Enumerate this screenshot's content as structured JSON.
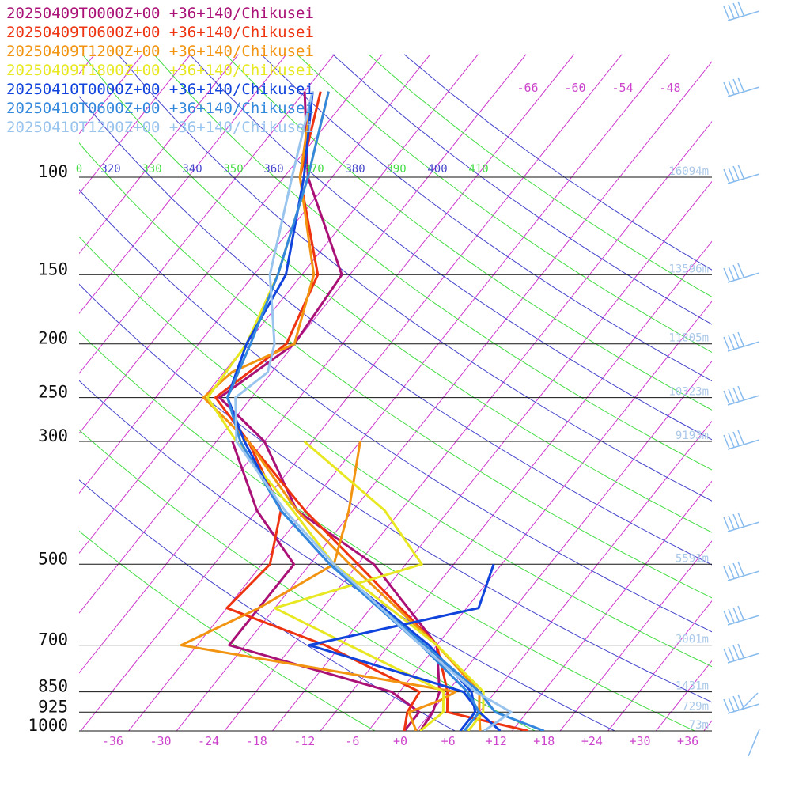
{
  "chart_data": {
    "type": "line",
    "title": "",
    "legend": [
      {
        "label": "20250409T0000Z+00 +36+140/Chikusei",
        "color": "#aa1177"
      },
      {
        "label": "20250409T0600Z+00 +36+140/Chikusei",
        "color": "#ee3311"
      },
      {
        "label": "20250409T1200Z+00 +36+140/Chikusei",
        "color": "#f29411"
      },
      {
        "label": "20250409T1800Z+00 +36+140/Chikusei",
        "color": "#e8e822"
      },
      {
        "label": "20250410T0000Z+00 +36+140/Chikusei",
        "color": "#1144dd"
      },
      {
        "label": "20250410T0600Z+00 +36+140/Chikusei",
        "color": "#3388dd"
      },
      {
        "label": "20250410T1200Z+00 +36+140/Chikusei",
        "color": "#99c4ee"
      }
    ],
    "pressure_levels": [
      {
        "label": "100",
        "p": 100,
        "height": "16094m"
      },
      {
        "label": "150",
        "p": 150,
        "height": "13596m"
      },
      {
        "label": "200",
        "p": 200,
        "height": "11805m"
      },
      {
        "label": "250",
        "p": 250,
        "height": "10323m"
      },
      {
        "label": "300",
        "p": 300,
        "height": "9193m"
      },
      {
        "label": "500",
        "p": 500,
        "height": "5591m"
      },
      {
        "label": "700",
        "p": 700,
        "height": "3001m"
      },
      {
        "label": "850",
        "p": 850,
        "height": "1431m"
      },
      {
        "label": "925",
        "p": 925,
        "height": "729m"
      },
      {
        "label": "1000",
        "p": 1000,
        "height": "73m"
      }
    ],
    "x_ticks": [
      "-36",
      "-30",
      "-24",
      "-18",
      "-12",
      "-6",
      "+0",
      "+6",
      "+12",
      "+18",
      "+24",
      "+30",
      "+36"
    ],
    "x_tick_values": [
      -36,
      -30,
      -24,
      -18,
      -12,
      -6,
      0,
      6,
      12,
      18,
      24,
      30,
      36
    ],
    "top_isotherm_labels": [
      "-66",
      "-60",
      "-54",
      "-48"
    ],
    "theta_labels": [
      {
        "label": "0",
        "color": "#44dd44"
      },
      {
        "label": "320",
        "color": "#4444cc"
      },
      {
        "label": "330",
        "color": "#44dd44"
      },
      {
        "label": "340",
        "color": "#4444cc"
      },
      {
        "label": "350",
        "color": "#44dd44"
      },
      {
        "label": "360",
        "color": "#4444cc"
      },
      {
        "label": "370",
        "color": "#44dd44"
      },
      {
        "label": "380",
        "color": "#4444cc"
      },
      {
        "label": "390",
        "color": "#44dd44"
      },
      {
        "label": "400",
        "color": "#4444cc"
      },
      {
        "label": "410",
        "color": "#44dd44"
      }
    ],
    "series": [
      {
        "name": "20250409T0000Z+00 +36+140/Chikusei",
        "color": "#aa1177",
        "profiles": [
          {
            "kind": "temperature",
            "points": [
              [
                1000,
                2.5
              ],
              [
                925,
                2.2
              ],
              [
                850,
                1.0
              ],
              [
                700,
                -4.0
              ],
              [
                500,
                -20.0
              ],
              [
                400,
                -35.0
              ],
              [
                300,
                -46.0
              ],
              [
                250,
                -56.0
              ],
              [
                200,
                -52.0
              ],
              [
                150,
                -53.0
              ],
              [
                100,
                -67.0
              ],
              [
                70,
                -76.0
              ]
            ]
          },
          {
            "kind": "dewpoint",
            "points": [
              [
                1000,
                0.5
              ],
              [
                925,
                0.5
              ],
              [
                850,
                -5.0
              ],
              [
                700,
                -30.0
              ],
              [
                500,
                -30.0
              ],
              [
                400,
                -40.0
              ],
              [
                300,
                -50.0
              ]
            ]
          }
        ]
      },
      {
        "name": "20250409T0600Z+00 +36+140/Chikusei",
        "color": "#ee3311",
        "profiles": [
          {
            "kind": "temperature",
            "points": [
              [
                1000,
                16.0
              ],
              [
                925,
                4.0
              ],
              [
                850,
                2.0
              ],
              [
                700,
                -4.0
              ],
              [
                500,
                -22.0
              ],
              [
                400,
                -34.0
              ],
              [
                300,
                -48.0
              ],
              [
                250,
                -56.5
              ],
              [
                200,
                -53.0
              ],
              [
                150,
                -56.0
              ],
              [
                100,
                -68.0
              ],
              [
                70,
                -74.0
              ]
            ]
          },
          {
            "kind": "dewpoint",
            "points": [
              [
                1000,
                0.5
              ],
              [
                925,
                -1.0
              ],
              [
                850,
                -1.5
              ],
              [
                700,
                -18.0
              ],
              [
                600,
                -34.0
              ],
              [
                500,
                -33.0
              ],
              [
                400,
                -37.0
              ],
              [
                300,
                -48.0
              ]
            ]
          }
        ]
      },
      {
        "name": "20250409T1200Z+00 +36+140/Chikusei",
        "color": "#f29411",
        "profiles": [
          {
            "kind": "temperature",
            "points": [
              [
                1000,
                10.0
              ],
              [
                925,
                8.0
              ],
              [
                850,
                6.0
              ],
              [
                700,
                -4.0
              ],
              [
                500,
                -23.0
              ],
              [
                400,
                -35.0
              ],
              [
                300,
                -48.0
              ],
              [
                250,
                -58.0
              ],
              [
                225,
                -57.0
              ],
              [
                200,
                -52.0
              ],
              [
                150,
                -56.5
              ],
              [
                100,
                -68.0
              ],
              [
                70,
                -75.0
              ]
            ]
          },
          {
            "kind": "dewpoint",
            "points": [
              [
                1000,
                2.0
              ],
              [
                925,
                -0.8
              ],
              [
                880,
                2.0
              ],
              [
                850,
                3.0
              ],
              [
                700,
                -36.0
              ],
              [
                600,
                -30.0
              ],
              [
                500,
                -25.0
              ],
              [
                400,
                -28.5
              ],
              [
                300,
                -34.0
              ]
            ]
          }
        ]
      },
      {
        "name": "20250409T1800Z+00 +36+140/Chikusei",
        "color": "#e8e822",
        "profiles": [
          {
            "kind": "temperature",
            "points": [
              [
                1000,
                8.5
              ],
              [
                925,
                8.5
              ],
              [
                850,
                6.5
              ],
              [
                700,
                -4.0
              ],
              [
                500,
                -25.0
              ],
              [
                400,
                -35.5
              ],
              [
                300,
                -49.5
              ],
              [
                250,
                -57.5
              ],
              [
                200,
                -58.0
              ],
              [
                150,
                -61.0
              ],
              [
                100,
                -67.0
              ],
              [
                70,
                -73.0
              ]
            ]
          },
          {
            "kind": "dewpoint",
            "points": [
              [
                1000,
                2.5
              ],
              [
                925,
                3.5
              ],
              [
                850,
                1.5
              ],
              [
                700,
                -15.0
              ],
              [
                600,
                -28.0
              ],
              [
                500,
                -14.0
              ],
              [
                400,
                -24.0
              ],
              [
                300,
                -41.0
              ]
            ]
          }
        ]
      },
      {
        "name": "20250410T0000Z+00 +36+140/Chikusei",
        "color": "#1144dd",
        "profiles": [
          {
            "kind": "temperature",
            "points": [
              [
                1000,
                7.5
              ],
              [
                925,
                7.5
              ],
              [
                850,
                5.0
              ],
              [
                700,
                -5.0
              ],
              [
                500,
                -25.5
              ],
              [
                400,
                -37.0
              ],
              [
                300,
                -48.5
              ],
              [
                250,
                -55.0
              ],
              [
                200,
                -58.0
              ],
              [
                150,
                -60.0
              ],
              [
                100,
                -67.5
              ],
              [
                70,
                -75.0
              ]
            ]
          },
          {
            "kind": "dewpoint",
            "points": [
              [
                1000,
                12.5
              ],
              [
                925,
                8.0
              ],
              [
                850,
                4.0
              ],
              [
                700,
                -20.0
              ],
              [
                600,
                -2.5
              ],
              [
                500,
                -5.0
              ]
            ]
          }
        ]
      },
      {
        "name": "20250410T0600Z+00 +36+140/Chikusei",
        "color": "#3388dd",
        "profiles": [
          {
            "kind": "temperature",
            "points": [
              [
                1000,
                18.0
              ],
              [
                925,
                10.0
              ],
              [
                850,
                6.0
              ],
              [
                700,
                -5.5
              ],
              [
                500,
                -25.5
              ],
              [
                400,
                -37.0
              ],
              [
                300,
                -49.0
              ],
              [
                250,
                -55.0
              ],
              [
                200,
                -57.5
              ],
              [
                150,
                -61.0
              ],
              [
                100,
                -67.0
              ],
              [
                70,
                -73.0
              ]
            ]
          },
          {
            "kind": "dewpoint",
            "points": [
              [
                1000,
                8.0
              ],
              [
                925,
                8.0
              ],
              [
                850,
                4.5
              ],
              [
                700,
                -6.0
              ],
              [
                500,
                -25.5
              ]
            ]
          }
        ]
      },
      {
        "name": "20250410T1200Z+00 +36+140/Chikusei",
        "color": "#99c4ee",
        "profiles": [
          {
            "kind": "temperature",
            "points": [
              [
                1000,
                10.5
              ],
              [
                925,
                12.0
              ],
              [
                850,
                5.5
              ],
              [
                700,
                -6.0
              ],
              [
                500,
                -25.0
              ],
              [
                400,
                -36.5
              ],
              [
                300,
                -49.5
              ],
              [
                250,
                -54.0
              ],
              [
                225,
                -52.5
              ],
              [
                200,
                -54.5
              ],
              [
                150,
                -62.0
              ],
              [
                100,
                -69.0
              ],
              [
                70,
                -75.0
              ]
            ]
          }
        ]
      }
    ]
  }
}
